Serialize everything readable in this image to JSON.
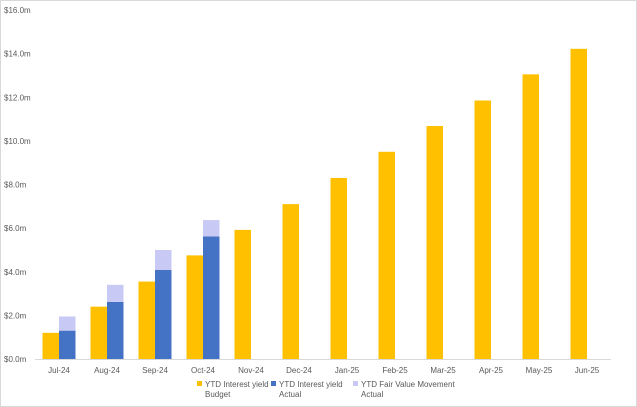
{
  "chart_data": {
    "type": "bar",
    "categories": [
      "Jul-24",
      "Aug-24",
      "Sep-24",
      "Oct-24",
      "Nov-24",
      "Dec-24",
      "Jan-25",
      "Feb-25",
      "Mar-25",
      "Apr-25",
      "May-25",
      "Jun-25"
    ],
    "series": [
      {
        "name": "YTD Interest yield Budget",
        "legend_lines": [
          "YTD Interest yield",
          "Budget"
        ],
        "color": "#FFC000",
        "stack": "budget",
        "values": [
          1.2,
          2.4,
          3.55,
          4.75,
          5.92,
          7.1,
          8.3,
          9.5,
          10.68,
          11.85,
          13.05,
          14.22
        ]
      },
      {
        "name": "YTD Interest yield Actual",
        "legend_lines": [
          "YTD Interest yield",
          "Actual"
        ],
        "color": "#4472C4",
        "stack": "actual",
        "values": [
          1.3,
          2.62,
          4.08,
          5.62,
          null,
          null,
          null,
          null,
          null,
          null,
          null,
          null
        ]
      },
      {
        "name": "YTD Fair Value Movement Actual",
        "legend_lines": [
          "YTD Fair Value Movement",
          "Actual"
        ],
        "color": "#C9C9F5",
        "stack": "actual",
        "values": [
          0.65,
          0.78,
          0.92,
          0.75,
          null,
          null,
          null,
          null,
          null,
          null,
          null,
          null
        ]
      }
    ],
    "ylim": [
      0,
      16
    ],
    "ytick_labels": [
      "$0.0m",
      "$2.0m",
      "$4.0m",
      "$6.0m",
      "$8.0m",
      "$10.0m",
      "$12.0m",
      "$14.0m",
      "$16.0m"
    ],
    "title": "",
    "xlabel": "",
    "ylabel": "",
    "grid": false,
    "legend_position": "bottom"
  }
}
